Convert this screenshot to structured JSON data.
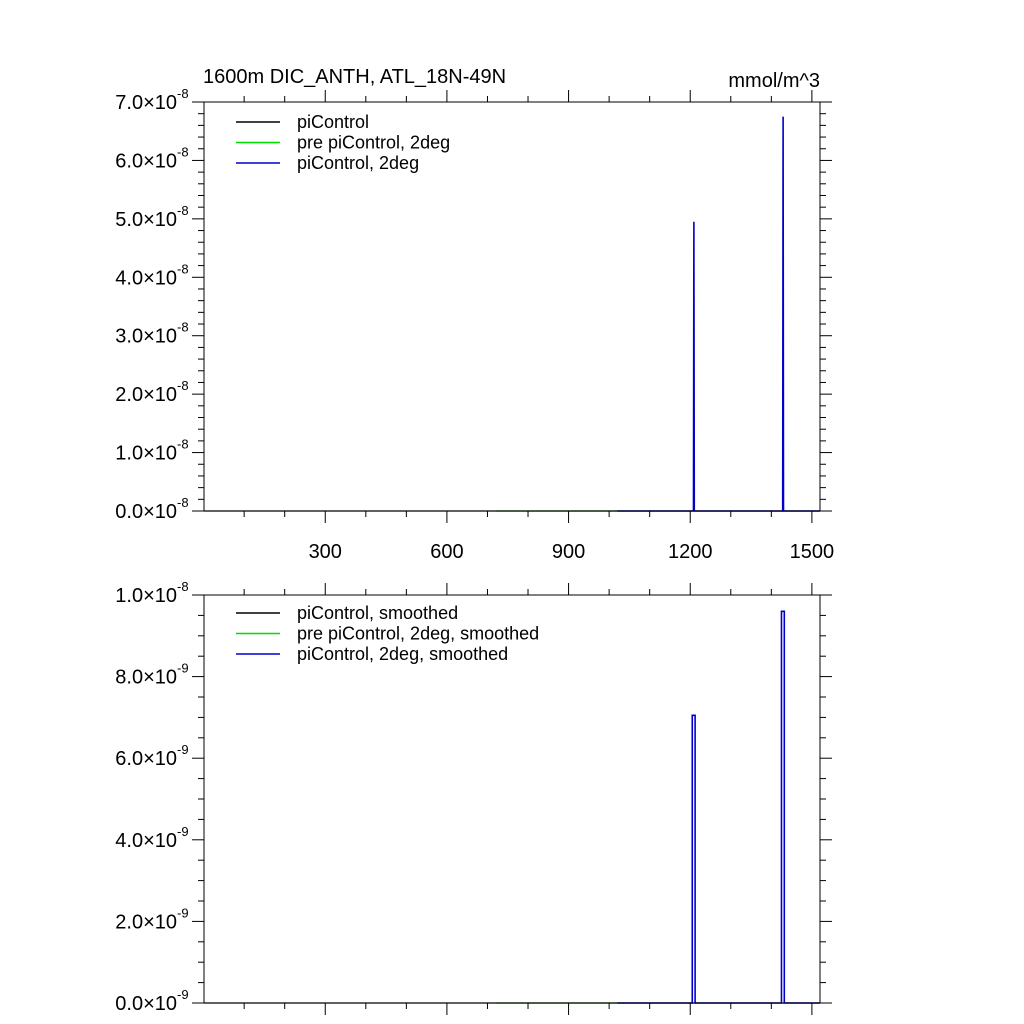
{
  "chart_data": [
    {
      "type": "line",
      "title_left": "1600m DIC_ANTH, ATL_18N-49N",
      "title_right": "mmol/m^3",
      "xlim": [
        1,
        1520
      ],
      "ylim": [
        0,
        7e-08
      ],
      "x_ticks": [
        300,
        600,
        900,
        1200,
        1500
      ],
      "x_tick_labels": [
        "300",
        "600",
        "900",
        "1200",
        "1500"
      ],
      "y_ticks": [
        0,
        1e-08,
        2e-08,
        3e-08,
        4e-08,
        5e-08,
        6e-08,
        7e-08
      ],
      "y_tick_labels": [
        {
          "mant": "0.0",
          "exp": "-8"
        },
        {
          "mant": "1.0",
          "exp": "-8"
        },
        {
          "mant": "2.0",
          "exp": "-8"
        },
        {
          "mant": "3.0",
          "exp": "-8"
        },
        {
          "mant": "4.0",
          "exp": "-8"
        },
        {
          "mant": "5.0",
          "exp": "-8"
        },
        {
          "mant": "6.0",
          "exp": "-8"
        },
        {
          "mant": "7.0",
          "exp": "-8"
        }
      ],
      "legend_position": "top-left",
      "series": [
        {
          "name": "piControl",
          "color": "#000000",
          "x": [
            1,
            1520
          ],
          "y": [
            0,
            0
          ]
        },
        {
          "name": "pre piControl, 2deg",
          "color": "#00dd00",
          "x": [
            720,
            1020
          ],
          "y": [
            0,
            0
          ]
        },
        {
          "name": "piControl, 2deg",
          "color": "#0000cc",
          "x": [
            1020,
            1208,
            1209,
            1210,
            1211,
            1428,
            1429,
            1430,
            1431,
            1520
          ],
          "y": [
            0,
            0,
            4.95e-08,
            0,
            0,
            0,
            6.75e-08,
            0,
            0,
            0
          ]
        }
      ]
    },
    {
      "type": "line",
      "xlim": [
        1,
        1520
      ],
      "ylim": [
        0,
        1e-08
      ],
      "x_ticks": [
        300,
        600,
        900,
        1200,
        1500
      ],
      "y_ticks": [
        0,
        2e-09,
        4e-09,
        6e-09,
        8e-09,
        1e-08
      ],
      "y_tick_labels": [
        {
          "mant": "0.0",
          "exp": "-9"
        },
        {
          "mant": "2.0",
          "exp": "-9"
        },
        {
          "mant": "4.0",
          "exp": "-9"
        },
        {
          "mant": "6.0",
          "exp": "-9"
        },
        {
          "mant": "8.0",
          "exp": "-9"
        },
        {
          "mant": "1.0",
          "exp": "-8"
        }
      ],
      "legend_position": "top-left",
      "series": [
        {
          "name": "piControl, smoothed",
          "color": "#000000",
          "x": [
            1,
            1520
          ],
          "y": [
            0,
            0
          ]
        },
        {
          "name": "pre piControl, 2deg, smoothed",
          "color": "#00dd00",
          "x": [
            720,
            1020
          ],
          "y": [
            0,
            0
          ]
        },
        {
          "name": "piControl, 2deg, smoothed",
          "color": "#0000cc",
          "x": [
            1020,
            1205,
            1205,
            1212,
            1212,
            1425,
            1425,
            1432,
            1432,
            1520
          ],
          "y": [
            0,
            0,
            7.05e-09,
            7.05e-09,
            0,
            0,
            9.6e-09,
            9.6e-09,
            0,
            0
          ]
        }
      ]
    }
  ]
}
